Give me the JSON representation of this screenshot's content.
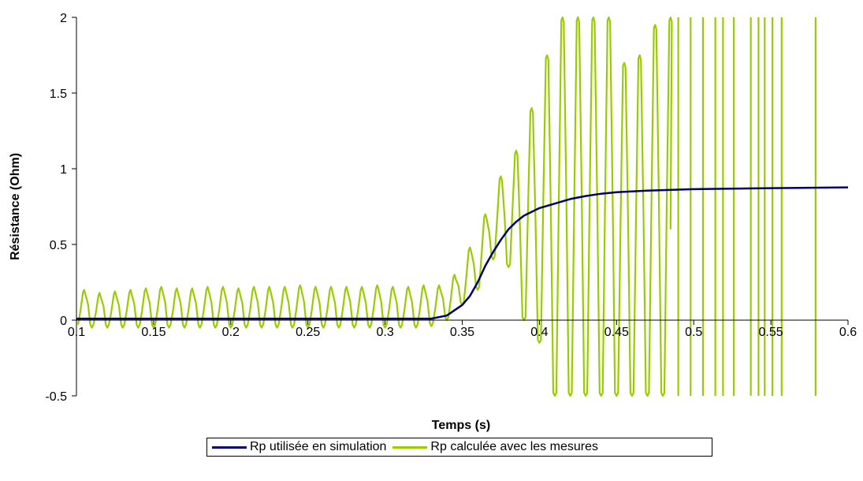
{
  "chart_data": {
    "type": "line",
    "title": "",
    "xlabel": "Temps (s)",
    "ylabel": "Résistance (Ohm)",
    "xlim": [
      0.1,
      0.6
    ],
    "ylim": [
      -0.5,
      2
    ],
    "x_ticks": [
      "0.1",
      "0.15",
      "0.2",
      "0.25",
      "0.3",
      "0.35",
      "0.4",
      "0.45",
      "0.5",
      "0.55",
      "0.6"
    ],
    "y_ticks": [
      "2",
      "1.5",
      "1",
      "0.5",
      "0",
      "-0.5"
    ],
    "grid": false,
    "legend_position": "bottom",
    "series": [
      {
        "name": "Rp utilisée en simulation",
        "color": "#000066",
        "x": [
          0.1,
          0.2,
          0.3,
          0.33,
          0.34,
          0.35,
          0.355,
          0.36,
          0.365,
          0.37,
          0.375,
          0.38,
          0.385,
          0.39,
          0.4,
          0.41,
          0.42,
          0.43,
          0.44,
          0.45,
          0.47,
          0.5,
          0.55,
          0.6
        ],
        "values": [
          0.01,
          0.01,
          0.01,
          0.01,
          0.03,
          0.1,
          0.16,
          0.25,
          0.36,
          0.45,
          0.53,
          0.6,
          0.65,
          0.69,
          0.74,
          0.77,
          0.8,
          0.82,
          0.835,
          0.845,
          0.855,
          0.865,
          0.872,
          0.877
        ]
      },
      {
        "name": "Rp calculée avec les mesures",
        "color": "#99cc00",
        "oscillation": {
          "x_start": 0.1,
          "x_end": 0.485,
          "period": 0.01,
          "first_peak_x": 0.105,
          "peaks": [
            0.2,
            0.18,
            0.19,
            0.2,
            0.21,
            0.22,
            0.21,
            0.21,
            0.22,
            0.22,
            0.21,
            0.22,
            0.22,
            0.22,
            0.23,
            0.22,
            0.22,
            0.22,
            0.22,
            0.23,
            0.22,
            0.22,
            0.23,
            0.23,
            0.3,
            0.48,
            0.7,
            0.95,
            1.12,
            1.4,
            1.75,
            2.0,
            2.0,
            2.0,
            2.0,
            1.7,
            1.75,
            1.95,
            2.0
          ],
          "troughs": [
            -0.05,
            -0.05,
            -0.05,
            -0.05,
            -0.05,
            -0.05,
            -0.05,
            -0.05,
            -0.05,
            -0.05,
            -0.05,
            -0.05,
            -0.05,
            -0.05,
            -0.05,
            -0.05,
            -0.05,
            -0.05,
            -0.05,
            -0.05,
            -0.05,
            -0.05,
            -0.05,
            -0.04,
            0.0,
            0.1,
            0.2,
            0.4,
            0.35,
            0.0,
            -0.15,
            -0.5,
            -0.5,
            -0.5,
            -0.5,
            -0.5,
            -0.5,
            -0.5,
            -0.5
          ]
        },
        "spikes_x": [
          0.49,
          0.498,
          0.506,
          0.514,
          0.519,
          0.526,
          0.537,
          0.542,
          0.546,
          0.551,
          0.557,
          0.579
        ]
      }
    ]
  },
  "legend": {
    "items": [
      "Rp utilisée en simulation",
      "Rp calculée avec les mesures"
    ]
  }
}
